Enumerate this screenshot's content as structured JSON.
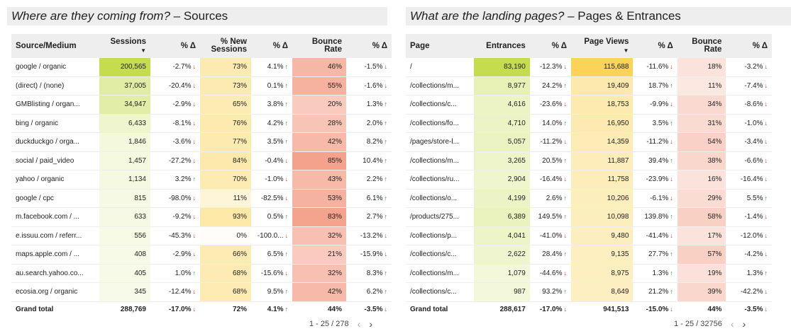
{
  "sources": {
    "title": "Where are they coming from?",
    "title_suffix": " – Sources",
    "headers": [
      "Source/Medium",
      "Sessions",
      "% Δ",
      "% New Sessions",
      "% Δ",
      "Bounce Rate",
      "% Δ"
    ],
    "rows": [
      [
        "google / organic",
        "200,565",
        "-2.7%",
        "73%",
        "4.1%",
        "46%",
        "-1.5%"
      ],
      [
        "(direct) / (none)",
        "37,005",
        "-20.4%",
        "73%",
        "0.1%",
        "55%",
        "-1.6%"
      ],
      [
        "GMBlisting / organ...",
        "34,947",
        "-2.9%",
        "65%",
        "3.8%",
        "20%",
        "1.3%"
      ],
      [
        "bing / organic",
        "6,433",
        "-8.1%",
        "76%",
        "4.2%",
        "28%",
        "2.0%"
      ],
      [
        "duckduckgo / orga...",
        "1,846",
        "-3.6%",
        "77%",
        "3.5%",
        "42%",
        "8.2%"
      ],
      [
        "social / paid_video",
        "1,457",
        "-27.2%",
        "84%",
        "-0.4%",
        "85%",
        "10.4%"
      ],
      [
        "yahoo / organic",
        "1,134",
        "3.2%",
        "70%",
        "-1.0%",
        "43%",
        "2.2%"
      ],
      [
        "google / cpc",
        "815",
        "-98.0%",
        "11%",
        "-82.5%",
        "53%",
        "6.1%"
      ],
      [
        "m.facebook.com / ...",
        "633",
        "-9.2%",
        "93%",
        "0.5%",
        "83%",
        "2.7%"
      ],
      [
        "e.issuu.com / referr...",
        "556",
        "-45.3%",
        "0%",
        "-100.0...",
        "32%",
        "-13.2%"
      ],
      [
        "maps.apple.com / ...",
        "408",
        "-2.9%",
        "66%",
        "6.5%",
        "21%",
        "-15.9%"
      ],
      [
        "au.search.yahoo.co...",
        "405",
        "1.0%",
        "68%",
        "-15.6%",
        "32%",
        "8.3%"
      ],
      [
        "ecosia.org / organic",
        "345",
        "-12.4%",
        "68%",
        "9.5%",
        "42%",
        "6.2%"
      ]
    ],
    "total": [
      "Grand total",
      "288,769",
      "-17.0%",
      "72%",
      "4.1%",
      "44%",
      "-3.5%"
    ],
    "pager": "1 - 25 / 278"
  },
  "pages": {
    "title": "What are the landing pages?",
    "title_suffix": " – Pages & Entrances",
    "headers": [
      "Page",
      "Entrances",
      "% Δ",
      "Page Views",
      "% Δ",
      "Bounce Rate",
      "% Δ"
    ],
    "rows": [
      [
        "/",
        "83,190",
        "-12.3%",
        "115,688",
        "-11.6%",
        "18%",
        "-3.2%"
      ],
      [
        "/collections/m...",
        "8,977",
        "24.2%",
        "19,409",
        "18.7%",
        "11%",
        "-7.4%"
      ],
      [
        "/collections/c...",
        "4,616",
        "-23.6%",
        "18,753",
        "-9.9%",
        "34%",
        "-8.6%"
      ],
      [
        "/collections/fo...",
        "4,710",
        "14.0%",
        "16,950",
        "3.5%",
        "31%",
        "-1.0%"
      ],
      [
        "/pages/store-l...",
        "5,057",
        "-11.2%",
        "14,359",
        "-11.2%",
        "54%",
        "-3.4%"
      ],
      [
        "/collections/m...",
        "3,265",
        "20.5%",
        "11,887",
        "39.4%",
        "38%",
        "-6.6%"
      ],
      [
        "/collections/ru...",
        "2,904",
        "-16.4%",
        "11,758",
        "-23.9%",
        "16%",
        "-16.4%"
      ],
      [
        "/collections/o...",
        "4,199",
        "2.6%",
        "10,206",
        "-6.1%",
        "29%",
        "5.5%"
      ],
      [
        "/products/275...",
        "6,389",
        "149.5%",
        "10,098",
        "139.8%",
        "58%",
        "-1.4%"
      ],
      [
        "/collections/p...",
        "4,041",
        "-41.0%",
        "9,480",
        "-41.4%",
        "17%",
        "-12.0%"
      ],
      [
        "/collections/c...",
        "2,622",
        "28.4%",
        "9,135",
        "27.7%",
        "57%",
        "-4.2%"
      ],
      [
        "/collections/m...",
        "1,079",
        "-44.6%",
        "8,975",
        "1.3%",
        "19%",
        "1.3%"
      ],
      [
        "/collections/c...",
        "987",
        "93.2%",
        "8,649",
        "21.2%",
        "39%",
        "-42.2%"
      ]
    ],
    "total": [
      "Grand total",
      "288,617",
      "-17.0%",
      "941,513",
      "-15.0%",
      "44%",
      "-3.5%"
    ],
    "pager": "1 - 25 / 32756"
  },
  "colors": {
    "green_strong": "#c5dc4f",
    "yellow_strong": "#fbd358",
    "up": "#1e8e3e",
    "down": "#d93025"
  }
}
